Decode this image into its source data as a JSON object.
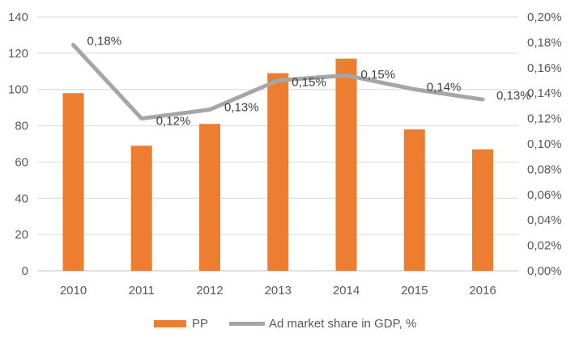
{
  "colors": {
    "bar": "#ED7D31",
    "line": "#A6A6A6",
    "grid": "#D9D9D9",
    "axis_line": "#D0CECE",
    "tick_text": "#595959",
    "data_label": "#404040",
    "background": "#FFFFFF"
  },
  "chart_data": {
    "type": "bar+line combo, dual axis",
    "title": "",
    "xlabel": "",
    "ylabel": "",
    "grid": true,
    "legend_position": "bottom",
    "categories": [
      "2010",
      "2011",
      "2012",
      "2013",
      "2014",
      "2015",
      "2016"
    ],
    "series": [
      {
        "name": "PP",
        "type": "bar",
        "axis": "left",
        "color": "#ED7D31",
        "values": [
          98,
          69,
          81,
          109,
          117,
          78,
          67
        ]
      },
      {
        "name": "Ad market share in GDP, %",
        "type": "line",
        "axis": "right",
        "color": "#A6A6A6",
        "values_pct": [
          0.178,
          0.12,
          0.127,
          0.15,
          0.154,
          0.143,
          0.135
        ],
        "point_labels": [
          "0,18%",
          "0,12%",
          "0,13%",
          "0,15%",
          "0,15%",
          "0,14%",
          "0,13%"
        ]
      }
    ],
    "left_axis": {
      "min": 0,
      "max": 140,
      "step": 20,
      "ticks": [
        "0",
        "20",
        "40",
        "60",
        "80",
        "100",
        "120",
        "140"
      ]
    },
    "right_axis": {
      "min": 0,
      "max": 0.2,
      "step": 0.02,
      "ticks": [
        "0,00%",
        "0,02%",
        "0,04%",
        "0,06%",
        "0,08%",
        "0,10%",
        "0,12%",
        "0,14%",
        "0,16%",
        "0,18%",
        "0,20%"
      ]
    }
  }
}
